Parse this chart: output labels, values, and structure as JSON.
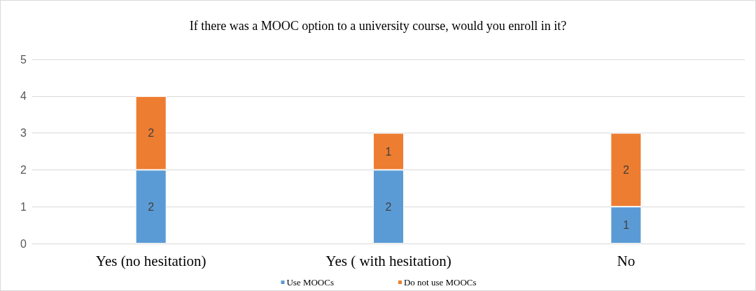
{
  "chart_data": {
    "type": "bar",
    "title": "If there was a MOOC option to a university course, would you enroll in it?",
    "categories": [
      "Yes (no hesitation)",
      "Yes ( with hesitation)",
      "No"
    ],
    "series": [
      {
        "name": "Use MOOCs",
        "color": "#5b9bd5",
        "values": [
          2,
          2,
          1
        ]
      },
      {
        "name": "Do not use MOOCs",
        "color": "#ed7d31",
        "values": [
          2,
          1,
          2
        ]
      }
    ],
    "stacked": true,
    "ylim": [
      0,
      5
    ],
    "yticks": [
      0,
      1,
      2,
      3,
      4,
      5
    ],
    "grid": "y",
    "legend": "bottom",
    "data_labels": true
  }
}
